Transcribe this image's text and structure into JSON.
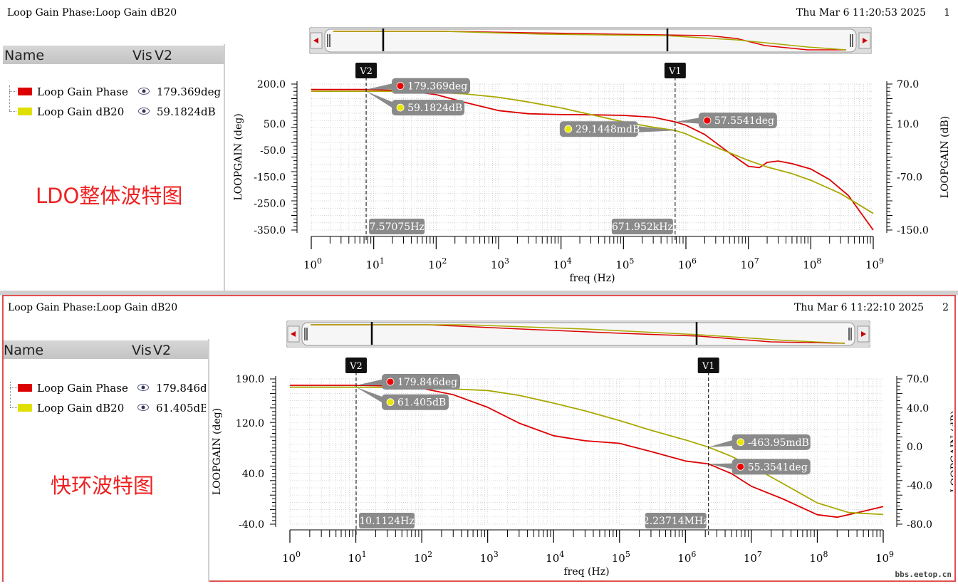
{
  "plots": [
    {
      "title": "Loop Gain Phase:Loop Gain dB20",
      "timestamp": "Thu Mar  6 11:20:53 2025",
      "index": "1",
      "legend_header": {
        "name": "Name",
        "vis": "Vis",
        "v2": "V2"
      },
      "legend": [
        {
          "name": "Loop Gain Phase",
          "value": "179.369deg",
          "color": "#dd0000"
        },
        {
          "name": "Loop Gain dB20",
          "value": "59.1824dB",
          "color": "#e0e000"
        }
      ],
      "annotation": "LDO整体波特图",
      "cursors": [
        {
          "name": "V2",
          "freq_label": "7.57075Hz"
        },
        {
          "name": "V1",
          "freq_label": "671.952kHz"
        }
      ],
      "markers": [
        {
          "label": "179.369deg",
          "series": "phase"
        },
        {
          "label": "59.1824dB",
          "series": "gain"
        },
        {
          "label": "29.1448mdB",
          "series": "gain"
        },
        {
          "label": "57.5541deg",
          "series": "phase"
        }
      ]
    },
    {
      "title": "Loop Gain Phase:Loop Gain dB20",
      "timestamp": "Thu Mar  6 11:22:10 2025",
      "index": "2",
      "legend_header": {
        "name": "Name",
        "vis": "Vis",
        "v2": "V2"
      },
      "legend": [
        {
          "name": "Loop Gain Phase",
          "value": "179.846deg",
          "color": "#dd0000"
        },
        {
          "name": "Loop Gain dB20",
          "value": "61.405dB",
          "color": "#e0e000"
        }
      ],
      "annotation": "快环波特图",
      "cursors": [
        {
          "name": "V2",
          "freq_label": "10.1124Hz"
        },
        {
          "name": "V1",
          "freq_label": "2.23714MHz"
        }
      ],
      "markers": [
        {
          "label": "179.846deg",
          "series": "phase"
        },
        {
          "label": "61.405dB",
          "series": "gain"
        },
        {
          "label": "-463.95mdB",
          "series": "gain"
        },
        {
          "label": "55.3541deg",
          "series": "phase"
        }
      ]
    }
  ],
  "watermark": "bbs.eetop.cn",
  "chart_data": [
    {
      "type": "line",
      "xscale": "log",
      "xlabel": "freq (Hz)",
      "ylabel_left": "LOOPGAIN (deg)",
      "ylabel_right": "LOOPGAIN (dB)",
      "xlim": [
        1,
        1000000000
      ],
      "ylim_left": [
        -350,
        200
      ],
      "ylim_right": [
        -150,
        70
      ],
      "yticks_left": [
        "200.0",
        "50.0",
        "-50.0",
        "-150.0",
        "-250.0",
        "-350.0"
      ],
      "yticks_left_values": [
        200,
        50,
        -50,
        -150,
        -250,
        -350
      ],
      "yticks_right": [
        "70.0",
        "10.0",
        "-70.0",
        "-150.0"
      ],
      "yticks_right_values": [
        70,
        10,
        -70,
        -150
      ],
      "xticks": [
        1,
        10,
        100,
        1000,
        10000,
        100000,
        1000000,
        10000000,
        100000000,
        1000000000
      ],
      "cursors_x": [
        7.57,
        671952
      ],
      "grid": true,
      "series": [
        {
          "name": "Loop Gain Phase",
          "axis": "left",
          "color": "#dd0000",
          "x": [
            1,
            3,
            7.57,
            20,
            50,
            100,
            300,
            1000,
            3000,
            10000,
            30000,
            100000,
            300000,
            671952,
            1000000,
            2000000,
            5000000,
            10000000,
            15000000,
            20000000,
            30000000,
            50000000,
            100000000,
            200000000,
            400000000,
            1000000000
          ],
          "y": [
            179.4,
            179.4,
            179.4,
            176,
            170,
            160,
            130,
            100,
            88,
            85,
            84,
            82,
            75,
            57.6,
            45,
            10,
            -60,
            -110,
            -115,
            -95,
            -90,
            -100,
            -120,
            -160,
            -220,
            -350
          ]
        },
        {
          "name": "Loop Gain dB20",
          "axis": "right",
          "color": "#a8a800",
          "x": [
            1,
            7.57,
            30,
            100,
            300,
            1000,
            3000,
            10000,
            30000,
            100000,
            300000,
            671952,
            1000000,
            3000000,
            10000000,
            20000000,
            50000000,
            100000000,
            300000000,
            1000000000
          ],
          "y": [
            59.2,
            59.18,
            58.9,
            57.5,
            55,
            50,
            43,
            34,
            24,
            13,
            5,
            0.03,
            -5,
            -25,
            -45,
            -55,
            -65,
            -75,
            -95,
            -125
          ]
        }
      ]
    },
    {
      "type": "line",
      "xscale": "log",
      "xlabel": "freq (Hz)",
      "ylabel_left": "LOOPGAIN (deg)",
      "ylabel_right": "LOOPGAIN (dB)",
      "xlim": [
        1,
        1000000000
      ],
      "ylim_left": [
        -40,
        190
      ],
      "ylim_right": [
        -80,
        70
      ],
      "yticks_left": [
        "190.0",
        "120.0",
        "40.0",
        "-40.0"
      ],
      "yticks_left_values": [
        190,
        120,
        40,
        -40
      ],
      "yticks_right": [
        "70.0",
        "40.0",
        "0.0",
        "-40.0",
        "-80.0"
      ],
      "yticks_right_values": [
        70,
        40,
        0,
        -40,
        -80
      ],
      "xticks": [
        1,
        10,
        100,
        1000,
        10000,
        100000,
        1000000,
        10000000,
        100000000,
        1000000000
      ],
      "cursors_x": [
        10.11,
        2237140
      ],
      "grid": true,
      "series": [
        {
          "name": "Loop Gain Phase",
          "axis": "left",
          "color": "#dd0000",
          "x": [
            1,
            10.11,
            30,
            100,
            300,
            1000,
            3000,
            10000,
            30000,
            100000,
            300000,
            1000000,
            2237140,
            5000000,
            10000000,
            30000000,
            100000000,
            200000000,
            400000000,
            1000000000
          ],
          "y": [
            179.8,
            179.8,
            179,
            175,
            165,
            145,
            120,
            100,
            92,
            88,
            75,
            60,
            55.4,
            40,
            20,
            0,
            -25,
            -29,
            -22,
            -12
          ]
        },
        {
          "name": "Loop Gain dB20",
          "axis": "right",
          "color": "#a8a800",
          "x": [
            1,
            10.11,
            100,
            1000,
            3000,
            10000,
            30000,
            100000,
            300000,
            1000000,
            2237140,
            5000000,
            10000000,
            30000000,
            100000000,
            300000000,
            1000000000
          ],
          "y": [
            61.4,
            61.4,
            61,
            58,
            53,
            45,
            37,
            27,
            17,
            7,
            -0.46,
            -10,
            -20,
            -38,
            -58,
            -68,
            -70
          ]
        }
      ]
    }
  ]
}
